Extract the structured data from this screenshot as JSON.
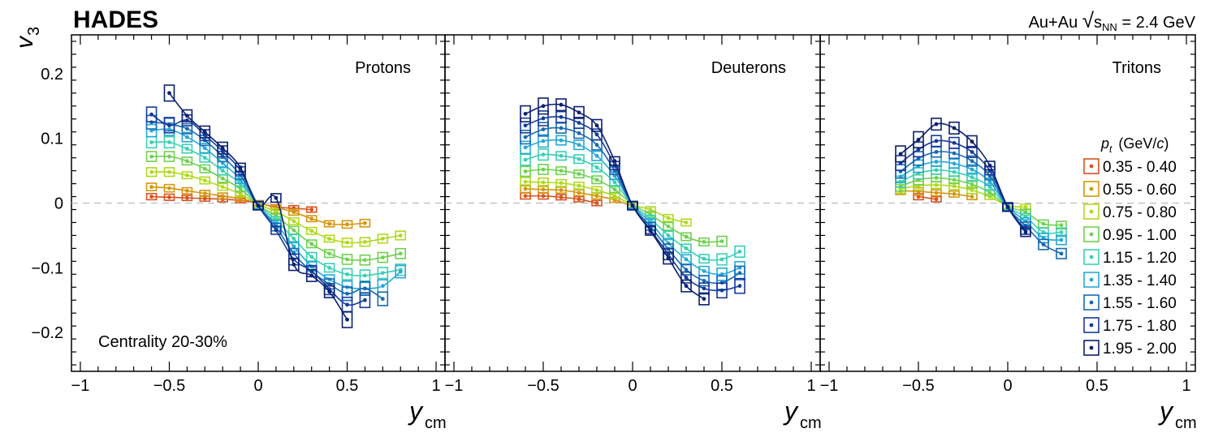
{
  "figure": {
    "experiment_label": "HADES",
    "system_prefix": "Au+Au ",
    "sqrt_symbol": "√",
    "s_label": "s",
    "nn_subscript": "NN",
    "energy_suffix": " = 2.4 GeV",
    "y_axis_main": "v",
    "y_axis_sub": "3",
    "x_axis_main": "y",
    "x_axis_sub": "cm",
    "centrality_label": "Centrality 20-30%"
  },
  "legend": {
    "title_pt": "p",
    "title_t": "t",
    "title_unit_prefix": "(GeV/",
    "title_unit_c": "c",
    "title_unit_suffix": ")",
    "entries": [
      "0.35 - 0.40",
      "0.55 - 0.60",
      "0.75 - 0.80",
      "0.95 - 1.00",
      "1.15 - 1.20",
      "1.35 - 1.40",
      "1.55 - 1.60",
      "1.75 - 1.80",
      "1.95 - 2.00"
    ],
    "colors": [
      "#d9531e",
      "#d4960f",
      "#b0d91e",
      "#6fd150",
      "#3ccfb4",
      "#25a8d6",
      "#1669b4",
      "#163a9a",
      "#0c2070"
    ]
  },
  "chart_data": [
    {
      "type": "scatter",
      "title": "Protons",
      "xlabel": "y_cm",
      "ylabel": "v_3",
      "xlim": [
        -1.05,
        1.05
      ],
      "ylim": [
        -0.26,
        0.26
      ],
      "xticks": [
        -1,
        -0.5,
        0,
        0.5,
        1
      ],
      "xtick_labels": [
        "−1",
        "−0.5",
        "0",
        "0.5",
        "1"
      ],
      "yticks": [
        -0.2,
        -0.1,
        0,
        0.1,
        0.2
      ],
      "ytick_labels": [
        "−0.2",
        "−0.1",
        "0",
        "0.1",
        "0.2"
      ],
      "series": [
        {
          "name": "0.35 - 0.40",
          "x": [
            -0.6,
            -0.5,
            -0.4,
            -0.3,
            -0.2,
            -0.1,
            0,
            0.1,
            0.2,
            0.3
          ],
          "y": [
            0.01,
            0.009,
            0.008,
            0.007,
            0.006,
            0.004,
            0.0,
            -0.006,
            -0.008,
            -0.01
          ]
        },
        {
          "name": "0.55 - 0.60",
          "x": [
            -0.6,
            -0.5,
            -0.4,
            -0.3,
            -0.2,
            -0.1,
            0,
            0.1,
            0.2,
            0.3,
            0.4,
            0.5,
            0.6
          ],
          "y": [
            0.025,
            0.023,
            0.019,
            0.015,
            0.011,
            0.007,
            0.0,
            -0.007,
            -0.014,
            -0.024,
            -0.032,
            -0.033,
            -0.031
          ]
        },
        {
          "name": "0.75 - 0.80",
          "x": [
            -0.6,
            -0.5,
            -0.4,
            -0.3,
            -0.2,
            -0.1,
            0,
            0.1,
            0.2,
            0.3,
            0.4,
            0.5,
            0.6,
            0.7,
            0.8
          ],
          "y": [
            0.048,
            0.048,
            0.043,
            0.035,
            0.025,
            0.014,
            -0.002,
            -0.013,
            -0.028,
            -0.043,
            -0.055,
            -0.061,
            -0.06,
            -0.055,
            -0.05
          ]
        },
        {
          "name": "0.95 - 1.00",
          "x": [
            -0.6,
            -0.5,
            -0.4,
            -0.3,
            -0.2,
            -0.1,
            0,
            0.1,
            0.2,
            0.3,
            0.4,
            0.5,
            0.6,
            0.7,
            0.8
          ],
          "y": [
            0.072,
            0.072,
            0.065,
            0.053,
            0.038,
            0.022,
            -0.003,
            -0.02,
            -0.042,
            -0.063,
            -0.078,
            -0.087,
            -0.088,
            -0.084,
            -0.078
          ]
        },
        {
          "name": "1.15 - 1.20",
          "x": [
            -0.6,
            -0.5,
            -0.4,
            -0.3,
            -0.2,
            -0.1,
            0,
            0.1,
            0.2,
            0.3,
            0.4,
            0.5,
            0.6,
            0.7,
            0.8
          ],
          "y": [
            0.094,
            0.094,
            0.084,
            0.07,
            0.05,
            0.03,
            -0.003,
            -0.026,
            -0.055,
            -0.083,
            -0.1,
            -0.11,
            -0.112,
            -0.108,
            -0.103
          ]
        },
        {
          "name": "1.35 - 1.40",
          "x": [
            -0.6,
            -0.5,
            -0.4,
            -0.3,
            -0.2,
            -0.1,
            0,
            0.1,
            0.2,
            0.3,
            0.4,
            0.5,
            0.6,
            0.7,
            0.8
          ],
          "y": [
            0.112,
            0.114,
            0.102,
            0.085,
            0.062,
            0.036,
            -0.004,
            -0.032,
            -0.067,
            -0.098,
            -0.118,
            -0.13,
            -0.132,
            -0.128,
            -0.106
          ]
        },
        {
          "name": "1.55 - 1.60",
          "x": [
            -0.6,
            -0.5,
            -0.4,
            -0.3,
            -0.2,
            -0.1,
            0,
            0.1,
            0.2,
            0.3,
            0.4,
            0.5,
            0.6,
            0.7
          ],
          "y": [
            0.125,
            0.122,
            0.115,
            0.097,
            0.072,
            0.043,
            -0.004,
            -0.037,
            -0.078,
            -0.106,
            -0.125,
            -0.14,
            -0.132,
            -0.148
          ]
        },
        {
          "name": "1.75 - 1.80",
          "x": [
            -0.6,
            -0.5,
            -0.4,
            -0.3,
            -0.2,
            -0.1,
            0,
            0.1,
            0.2,
            0.3,
            0.4,
            0.5,
            0.6
          ],
          "y": [
            0.137,
            0.12,
            0.128,
            0.105,
            0.08,
            0.05,
            -0.004,
            -0.042,
            -0.087,
            -0.105,
            -0.133,
            -0.157,
            -0.15
          ]
        },
        {
          "name": "1.95 - 2.00",
          "x": [
            -0.5,
            -0.4,
            -0.3,
            -0.2,
            -0.1,
            0,
            0.1,
            0.2,
            0.3,
            0.4,
            0.5
          ],
          "y": [
            0.17,
            0.135,
            0.11,
            0.085,
            0.055,
            -0.004,
            0.008,
            -0.095,
            -0.112,
            -0.137,
            -0.18
          ]
        }
      ]
    },
    {
      "type": "scatter",
      "title": "Deuterons",
      "xlabel": "y_cm",
      "ylabel": "v_3",
      "xlim": [
        -1.05,
        1.05
      ],
      "ylim": [
        -0.26,
        0.26
      ],
      "xticks": [
        -1,
        -0.5,
        0,
        0.5,
        1
      ],
      "xtick_labels": [
        "−1",
        "−0.5",
        "0",
        "0.5",
        "1"
      ],
      "yticks": [
        -0.2,
        -0.1,
        0,
        0.1,
        0.2
      ],
      "ytick_labels": [
        "−0.2",
        "−0.1",
        "0",
        "0.1",
        "0.2"
      ],
      "series": [
        {
          "name": "0.35 - 0.40",
          "x": [
            -0.6,
            -0.5,
            -0.4,
            -0.3,
            -0.2
          ],
          "y": [
            0.011,
            0.011,
            0.009,
            0.006,
            0.0
          ]
        },
        {
          "name": "0.55 - 0.60",
          "x": [
            -0.6,
            -0.5,
            -0.4,
            -0.3,
            -0.2,
            -0.1,
            0
          ],
          "y": [
            0.022,
            0.021,
            0.02,
            0.016,
            0.011,
            0.005,
            -0.005
          ]
        },
        {
          "name": "0.75 - 0.80",
          "x": [
            -0.6,
            -0.5,
            -0.4,
            -0.3,
            -0.2,
            -0.1,
            0,
            0.1,
            0.2,
            0.3
          ],
          "y": [
            0.033,
            0.032,
            0.031,
            0.027,
            0.02,
            0.011,
            -0.003,
            -0.01,
            -0.023,
            -0.03
          ]
        },
        {
          "name": "0.95 - 1.00",
          "x": [
            -0.6,
            -0.5,
            -0.4,
            -0.3,
            -0.2,
            -0.1,
            0,
            0.1,
            0.2,
            0.3,
            0.4,
            0.5
          ],
          "y": [
            0.049,
            0.052,
            0.05,
            0.045,
            0.036,
            0.021,
            -0.002,
            -0.018,
            -0.036,
            -0.052,
            -0.06,
            -0.059
          ]
        },
        {
          "name": "1.15 - 1.20",
          "x": [
            -0.6,
            -0.5,
            -0.4,
            -0.3,
            -0.2,
            -0.1,
            0,
            0.1,
            0.2,
            0.3,
            0.4,
            0.5,
            0.6
          ],
          "y": [
            0.067,
            0.075,
            0.073,
            0.068,
            0.055,
            0.032,
            -0.003,
            -0.024,
            -0.05,
            -0.07,
            -0.086,
            -0.087,
            -0.075
          ]
        },
        {
          "name": "1.35 - 1.40",
          "x": [
            -0.6,
            -0.5,
            -0.4,
            -0.3,
            -0.2,
            -0.1,
            0,
            0.1,
            0.2,
            0.3,
            0.4,
            0.5,
            0.6
          ],
          "y": [
            0.086,
            0.096,
            0.097,
            0.09,
            0.073,
            0.042,
            -0.003,
            -0.03,
            -0.062,
            -0.087,
            -0.105,
            -0.11,
            -0.1
          ]
        },
        {
          "name": "1.55 - 1.60",
          "x": [
            -0.6,
            -0.5,
            -0.4,
            -0.3,
            -0.2,
            -0.1,
            0,
            0.1,
            0.2,
            0.3,
            0.4,
            0.5,
            0.6
          ],
          "y": [
            0.102,
            0.114,
            0.116,
            0.108,
            0.09,
            0.05,
            -0.004,
            -0.036,
            -0.071,
            -0.103,
            -0.12,
            -0.123,
            -0.108
          ]
        },
        {
          "name": "1.75 - 1.80",
          "x": [
            -0.6,
            -0.5,
            -0.4,
            -0.3,
            -0.2,
            -0.1,
            0,
            0.1,
            0.2,
            0.3,
            0.4,
            0.5,
            0.6
          ],
          "y": [
            0.12,
            0.131,
            0.133,
            0.124,
            0.106,
            0.058,
            -0.004,
            -0.041,
            -0.079,
            -0.115,
            -0.132,
            -0.135,
            -0.128
          ]
        },
        {
          "name": "1.95 - 2.00",
          "x": [
            -0.6,
            -0.5,
            -0.4,
            -0.3,
            -0.2,
            -0.1,
            0,
            0.1,
            0.2,
            0.3,
            0.4
          ],
          "y": [
            0.138,
            0.15,
            0.152,
            0.14,
            0.12,
            0.065,
            -0.004,
            -0.043,
            -0.085,
            -0.128,
            -0.148
          ]
        }
      ]
    },
    {
      "type": "scatter",
      "title": "Tritons",
      "xlabel": "y_cm",
      "ylabel": "v_3",
      "xlim": [
        -1.05,
        1.05
      ],
      "ylim": [
        -0.26,
        0.26
      ],
      "xticks": [
        -1,
        -0.5,
        0,
        0.5,
        1
      ],
      "xtick_labels": [
        "−1",
        "−0.5",
        "0",
        "0.5",
        "1"
      ],
      "yticks": [
        -0.2,
        -0.1,
        0,
        0.1,
        0.2
      ],
      "ytick_labels": [
        "−0.2",
        "−0.1",
        "0",
        "0.1",
        "0.2"
      ],
      "series": [
        {
          "name": "0.35 - 0.40",
          "x": [
            -0.5,
            -0.4
          ],
          "y": [
            0.01,
            0.006
          ]
        },
        {
          "name": "0.55 - 0.60",
          "x": [
            -0.6,
            -0.5,
            -0.4,
            -0.3,
            -0.2
          ],
          "y": [
            0.019,
            0.018,
            0.016,
            0.014,
            0.01
          ]
        },
        {
          "name": "0.75 - 0.80",
          "x": [
            -0.6,
            -0.5,
            -0.4,
            -0.3,
            -0.2,
            -0.1,
            0,
            0.1
          ],
          "y": [
            0.022,
            0.027,
            0.028,
            0.026,
            0.02,
            0.01,
            -0.004,
            -0.006
          ]
        },
        {
          "name": "0.95 - 1.00",
          "x": [
            -0.6,
            -0.5,
            -0.4,
            -0.3,
            -0.2,
            -0.1,
            0,
            0.1,
            0.2,
            0.3
          ],
          "y": [
            0.026,
            0.036,
            0.039,
            0.036,
            0.029,
            0.016,
            -0.005,
            -0.014,
            -0.032,
            -0.034
          ]
        },
        {
          "name": "1.15 - 1.20",
          "x": [
            -0.6,
            -0.5,
            -0.4,
            -0.3,
            -0.2,
            -0.1,
            0,
            0.1,
            0.2,
            0.3
          ],
          "y": [
            0.033,
            0.046,
            0.051,
            0.048,
            0.04,
            0.025,
            -0.006,
            -0.021,
            -0.045,
            -0.045
          ]
        },
        {
          "name": "1.35 - 1.40",
          "x": [
            -0.6,
            -0.5,
            -0.4,
            -0.3,
            -0.2,
            -0.1,
            0,
            0.1,
            0.2,
            0.3
          ],
          "y": [
            0.041,
            0.057,
            0.064,
            0.061,
            0.052,
            0.033,
            -0.006,
            -0.028,
            -0.054,
            -0.057
          ]
        },
        {
          "name": "1.55 - 1.60",
          "x": [
            -0.6,
            -0.5,
            -0.4,
            -0.3,
            -0.2,
            -0.1,
            0,
            0.1,
            0.2,
            0.3
          ],
          "y": [
            0.049,
            0.069,
            0.079,
            0.077,
            0.065,
            0.042,
            -0.007,
            -0.035,
            -0.064,
            -0.078
          ]
        },
        {
          "name": "1.75 - 1.80",
          "x": [
            -0.6,
            -0.5,
            -0.4,
            -0.3,
            -0.2,
            -0.1,
            0,
            0.1
          ],
          "y": [
            0.062,
            0.083,
            0.096,
            0.093,
            0.079,
            0.05,
            -0.006,
            -0.042
          ]
        },
        {
          "name": "1.95 - 2.00",
          "x": [
            -0.6,
            -0.5,
            -0.4,
            -0.3,
            -0.2,
            -0.1,
            0,
            0.1
          ],
          "y": [
            0.076,
            0.098,
            0.122,
            0.116,
            0.095,
            0.058,
            -0.006,
            -0.045
          ]
        }
      ]
    }
  ]
}
